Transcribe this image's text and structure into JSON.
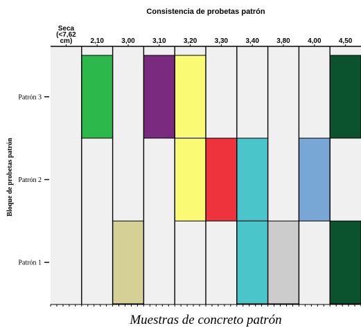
{
  "chart_data": {
    "type": "heatmap",
    "title": "Consistencia de probetas patrón",
    "xlabel": "Muestras de concreto patrón",
    "ylabel": "Bloque de probetas patrón",
    "columns": [
      {
        "lines": [
          "Seca",
          "(<7,62",
          "cm)"
        ]
      },
      {
        "lines": [
          "2,10"
        ]
      },
      {
        "lines": [
          "3,00"
        ]
      },
      {
        "lines": [
          "3,10"
        ]
      },
      {
        "lines": [
          "3,20"
        ]
      },
      {
        "lines": [
          "3,30"
        ]
      },
      {
        "lines": [
          "3,40"
        ]
      },
      {
        "lines": [
          "3,80"
        ]
      },
      {
        "lines": [
          "4,00"
        ]
      },
      {
        "lines": [
          "4,50"
        ]
      }
    ],
    "rows": [
      "Patrón 3",
      "Patrón 2",
      "Patrón 1"
    ],
    "cells": [
      {
        "row": "Patrón 3",
        "column": "2,10",
        "color": "#2db84b"
      },
      {
        "row": "Patrón 3",
        "column": "3,10",
        "color": "#7b2b7f"
      },
      {
        "row": "Patrón 3",
        "column": "3,20",
        "color": "#fbfa74"
      },
      {
        "row": "Patrón 3",
        "column": "4,50",
        "color": "#0b532e"
      },
      {
        "row": "Patrón 2",
        "column": "3,20",
        "color": "#fbfa74"
      },
      {
        "row": "Patrón 2",
        "column": "3,30",
        "color": "#ef333d"
      },
      {
        "row": "Patrón 2",
        "column": "3,40",
        "color": "#4ac6cb"
      },
      {
        "row": "Patrón 2",
        "column": "4,00",
        "color": "#78a7d6"
      },
      {
        "row": "Patrón 1",
        "column": "3,00",
        "color": "#d4d096"
      },
      {
        "row": "Patrón 1",
        "column": "3,40",
        "color": "#4ac6cb"
      },
      {
        "row": "Patrón 1",
        "column": "3,80",
        "color": "#cccccc"
      },
      {
        "row": "Patrón 1",
        "column": "4,50",
        "color": "#0b532e"
      }
    ],
    "grid": true,
    "background_color": "#f0f0f0"
  }
}
